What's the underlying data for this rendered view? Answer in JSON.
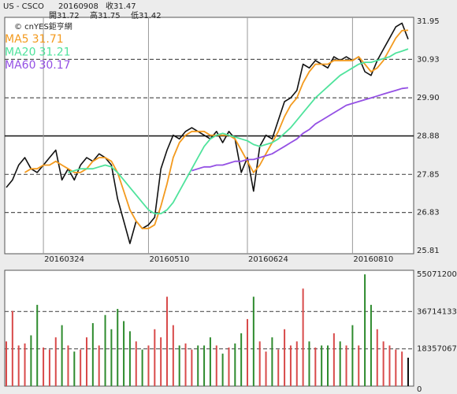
{
  "header": {
    "symbol": "US - CSCO",
    "date": "20160908",
    "close_label": "收",
    "close": 31.47,
    "open_label": "開",
    "open": 31.72,
    "high_label": "高",
    "high": 31.75,
    "low_label": "低",
    "low": 31.42,
    "source": "© cnYES鉅亨網"
  },
  "chart_data": [
    {
      "type": "line",
      "categories": [
        null,
        null,
        null,
        null,
        null,
        null,
        "20160324",
        null,
        null,
        null,
        null,
        null,
        null,
        null,
        null,
        null,
        null,
        null,
        null,
        null,
        null,
        null,
        null,
        "20160510",
        null,
        null,
        null,
        null,
        null,
        null,
        null,
        null,
        null,
        null,
        null,
        null,
        null,
        null,
        null,
        "20160624",
        null,
        null,
        null,
        null,
        null,
        null,
        null,
        null,
        null,
        null,
        null,
        null,
        null,
        null,
        null,
        null,
        "20160810",
        null,
        null,
        null,
        null,
        null,
        null,
        null,
        null,
        null
      ],
      "ylim": [
        25.81,
        31.95
      ],
      "yticks": [
        25.81,
        26.83,
        27.85,
        28.88,
        {
          "value": 29.9,
          "label": "29.90"
        },
        30.93,
        31.95
      ],
      "series": [
        {
          "color": "#111111",
          "values": [
            27.5,
            27.7,
            28.1,
            28.3,
            28.0,
            27.9,
            28.1,
            28.3,
            28.5,
            27.7,
            28.0,
            27.7,
            28.1,
            28.3,
            28.2,
            28.4,
            28.3,
            28.1,
            27.2,
            26.6,
            26.0,
            26.6,
            26.4,
            26.5,
            26.7,
            28.0,
            28.5,
            28.9,
            28.8,
            29.0,
            29.1,
            29.0,
            28.9,
            28.8,
            29.0,
            28.7,
            29.0,
            28.8,
            27.9,
            28.3,
            27.4,
            28.6,
            28.9,
            28.8,
            29.3,
            29.8,
            29.9,
            30.1,
            30.8,
            30.7,
            30.9,
            30.8,
            30.7,
            31.0,
            30.9,
            31.0,
            30.9,
            31.0,
            30.6,
            30.5,
            30.9,
            31.2,
            31.5,
            31.8,
            31.9,
            31.47
          ]
        },
        {
          "name": "MA5",
          "color": "#f39a1e",
          "values": [
            null,
            null,
            null,
            27.9,
            28.0,
            28.0,
            28.1,
            28.1,
            28.2,
            28.1,
            28.0,
            27.9,
            27.9,
            28.0,
            28.2,
            28.3,
            28.3,
            28.2,
            27.9,
            27.4,
            26.9,
            26.6,
            26.4,
            26.4,
            26.5,
            27.0,
            27.6,
            28.3,
            28.7,
            28.9,
            29.0,
            29.0,
            29.0,
            28.9,
            28.9,
            28.9,
            28.9,
            28.8,
            28.5,
            28.2,
            27.9,
            28.1,
            28.4,
            28.7,
            29.0,
            29.4,
            29.7,
            29.9,
            30.3,
            30.6,
            30.8,
            30.8,
            30.8,
            30.9,
            30.9,
            30.9,
            30.9,
            31.0,
            30.8,
            30.6,
            30.7,
            30.9,
            31.2,
            31.5,
            31.7,
            31.71
          ]
        },
        {
          "name": "MA20",
          "color": "#4fe39c",
          "values": [
            null,
            null,
            null,
            null,
            null,
            null,
            null,
            null,
            null,
            null,
            27.9,
            27.95,
            28.0,
            28.0,
            28.0,
            28.05,
            28.1,
            28.05,
            27.9,
            27.7,
            27.5,
            27.3,
            27.1,
            26.9,
            26.8,
            26.8,
            26.9,
            27.1,
            27.4,
            27.7,
            28.0,
            28.3,
            28.6,
            28.8,
            28.9,
            28.95,
            28.9,
            28.85,
            28.8,
            28.75,
            28.65,
            28.6,
            28.65,
            28.7,
            28.8,
            28.95,
            29.1,
            29.3,
            29.5,
            29.7,
            29.9,
            30.05,
            30.2,
            30.35,
            30.5,
            30.6,
            30.7,
            30.8,
            30.85,
            30.85,
            30.9,
            30.95,
            31.0,
            31.1,
            31.15,
            31.21
          ]
        },
        {
          "name": "MA60",
          "color": "#9450e4",
          "values": [
            null,
            null,
            null,
            null,
            null,
            null,
            null,
            null,
            null,
            null,
            null,
            null,
            null,
            null,
            null,
            null,
            null,
            null,
            null,
            null,
            null,
            null,
            null,
            null,
            null,
            null,
            null,
            null,
            null,
            null,
            27.95,
            28.0,
            28.05,
            28.05,
            28.1,
            28.1,
            28.15,
            28.2,
            28.2,
            28.25,
            28.25,
            28.3,
            28.35,
            28.4,
            28.5,
            28.6,
            28.7,
            28.8,
            28.95,
            29.05,
            29.2,
            29.3,
            29.4,
            29.5,
            29.6,
            29.7,
            29.75,
            29.8,
            29.85,
            29.9,
            29.95,
            30.0,
            30.05,
            30.1,
            30.15,
            30.17
          ]
        }
      ]
    },
    {
      "type": "bar",
      "ylim": [
        0,
        55071200
      ],
      "yticks": [
        0,
        18357067,
        36714133,
        55071200
      ],
      "values": [
        22000000,
        37000000,
        20000000,
        21000000,
        25000000,
        40000000,
        19000000,
        18000000,
        24000000,
        30000000,
        20000000,
        17000000,
        18000000,
        24000000,
        31000000,
        20000000,
        35000000,
        28000000,
        38000000,
        32000000,
        27000000,
        22000000,
        18000000,
        20000000,
        28000000,
        24000000,
        44000000,
        30000000,
        20000000,
        21000000,
        18000000,
        20000000,
        20000000,
        24000000,
        20000000,
        16000000,
        19000000,
        21000000,
        26000000,
        33000000,
        44000000,
        22000000,
        17000000,
        24000000,
        18000000,
        28000000,
        20000000,
        22000000,
        48000000,
        22000000,
        19000000,
        20000000,
        20000000,
        26000000,
        22000000,
        20000000,
        30000000,
        20000000,
        55000000,
        40000000,
        28000000,
        22000000,
        20000000,
        18000000,
        17000000,
        14000000
      ],
      "colors": [
        "#d84a4a",
        "#d84a4a",
        "#d84a4a",
        "#d84a4a",
        "#2e8b2e",
        "#2e8b2e",
        "#d84a4a",
        "#d84a4a",
        "#d84a4a",
        "#2e8b2e",
        "#d84a4a",
        "#2e8b2e",
        "#d84a4a",
        "#d84a4a",
        "#2e8b2e",
        "#d84a4a",
        "#2e8b2e",
        "#2e8b2e",
        "#2e8b2e",
        "#2e8b2e",
        "#2e8b2e",
        "#d84a4a",
        "#2e8b2e",
        "#d84a4a",
        "#d84a4a",
        "#d84a4a",
        "#d84a4a",
        "#d84a4a",
        "#2e8b2e",
        "#d84a4a",
        "#d84a4a",
        "#2e8b2e",
        "#2e8b2e",
        "#2e8b2e",
        "#d84a4a",
        "#2e8b2e",
        "#d84a4a",
        "#2e8b2e",
        "#2e8b2e",
        "#d84a4a",
        "#2e8b2e",
        "#d84a4a",
        "#d84a4a",
        "#2e8b2e",
        "#d84a4a",
        "#d84a4a",
        "#d84a4a",
        "#d84a4a",
        "#d84a4a",
        "#2e8b2e",
        "#d84a4a",
        "#2e8b2e",
        "#2e8b2e",
        "#d84a4a",
        "#2e8b2e",
        "#d84a4a",
        "#2e8b2e",
        "#d84a4a",
        "#2e8b2e",
        "#2e8b2e",
        "#d84a4a",
        "#d84a4a",
        "#d84a4a",
        "#d84a4a",
        "#d84a4a",
        "#111111"
      ]
    }
  ]
}
